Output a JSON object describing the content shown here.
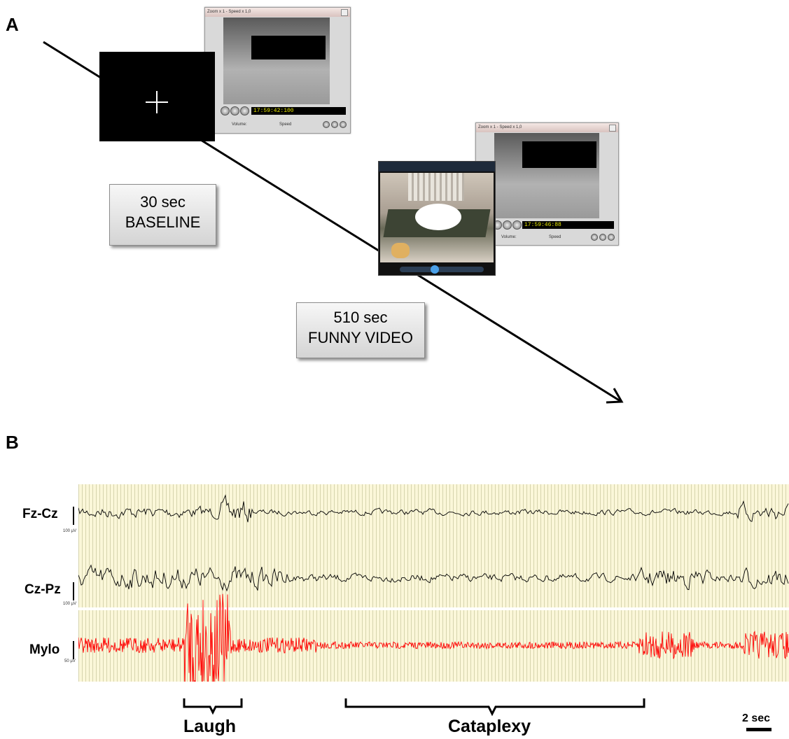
{
  "panel_a": {
    "letter": "A",
    "cam_window_1": {
      "title": "Zoom x 1 - Speed x 1,0",
      "timestamp": "17:59:42:100",
      "volume_label": "Volume:",
      "speed_label": "Speed"
    },
    "cam_window_2": {
      "title": "Zoom x 1 - Speed x 1,0",
      "timestamp": "17:59:46:88",
      "volume_label": "Volume:",
      "speed_label": "Speed"
    },
    "baseline_box": {
      "line1": "30 sec",
      "line2": "BASELINE"
    },
    "video_box": {
      "line1": "510 sec",
      "line2": "FUNNY VIDEO"
    }
  },
  "panel_b": {
    "letter": "B",
    "channels": [
      {
        "name": "Fz-Cz",
        "scale": "100 µV",
        "color": "#000000"
      },
      {
        "name": "Cz-Pz",
        "scale": "100 µV",
        "color": "#000000"
      },
      {
        "name": "Mylo",
        "scale": "50 µV",
        "color": "#ff0000"
      }
    ],
    "events": {
      "laugh": "Laugh",
      "cataplexy": "Cataplexy"
    },
    "time_scale": "2 sec"
  }
}
